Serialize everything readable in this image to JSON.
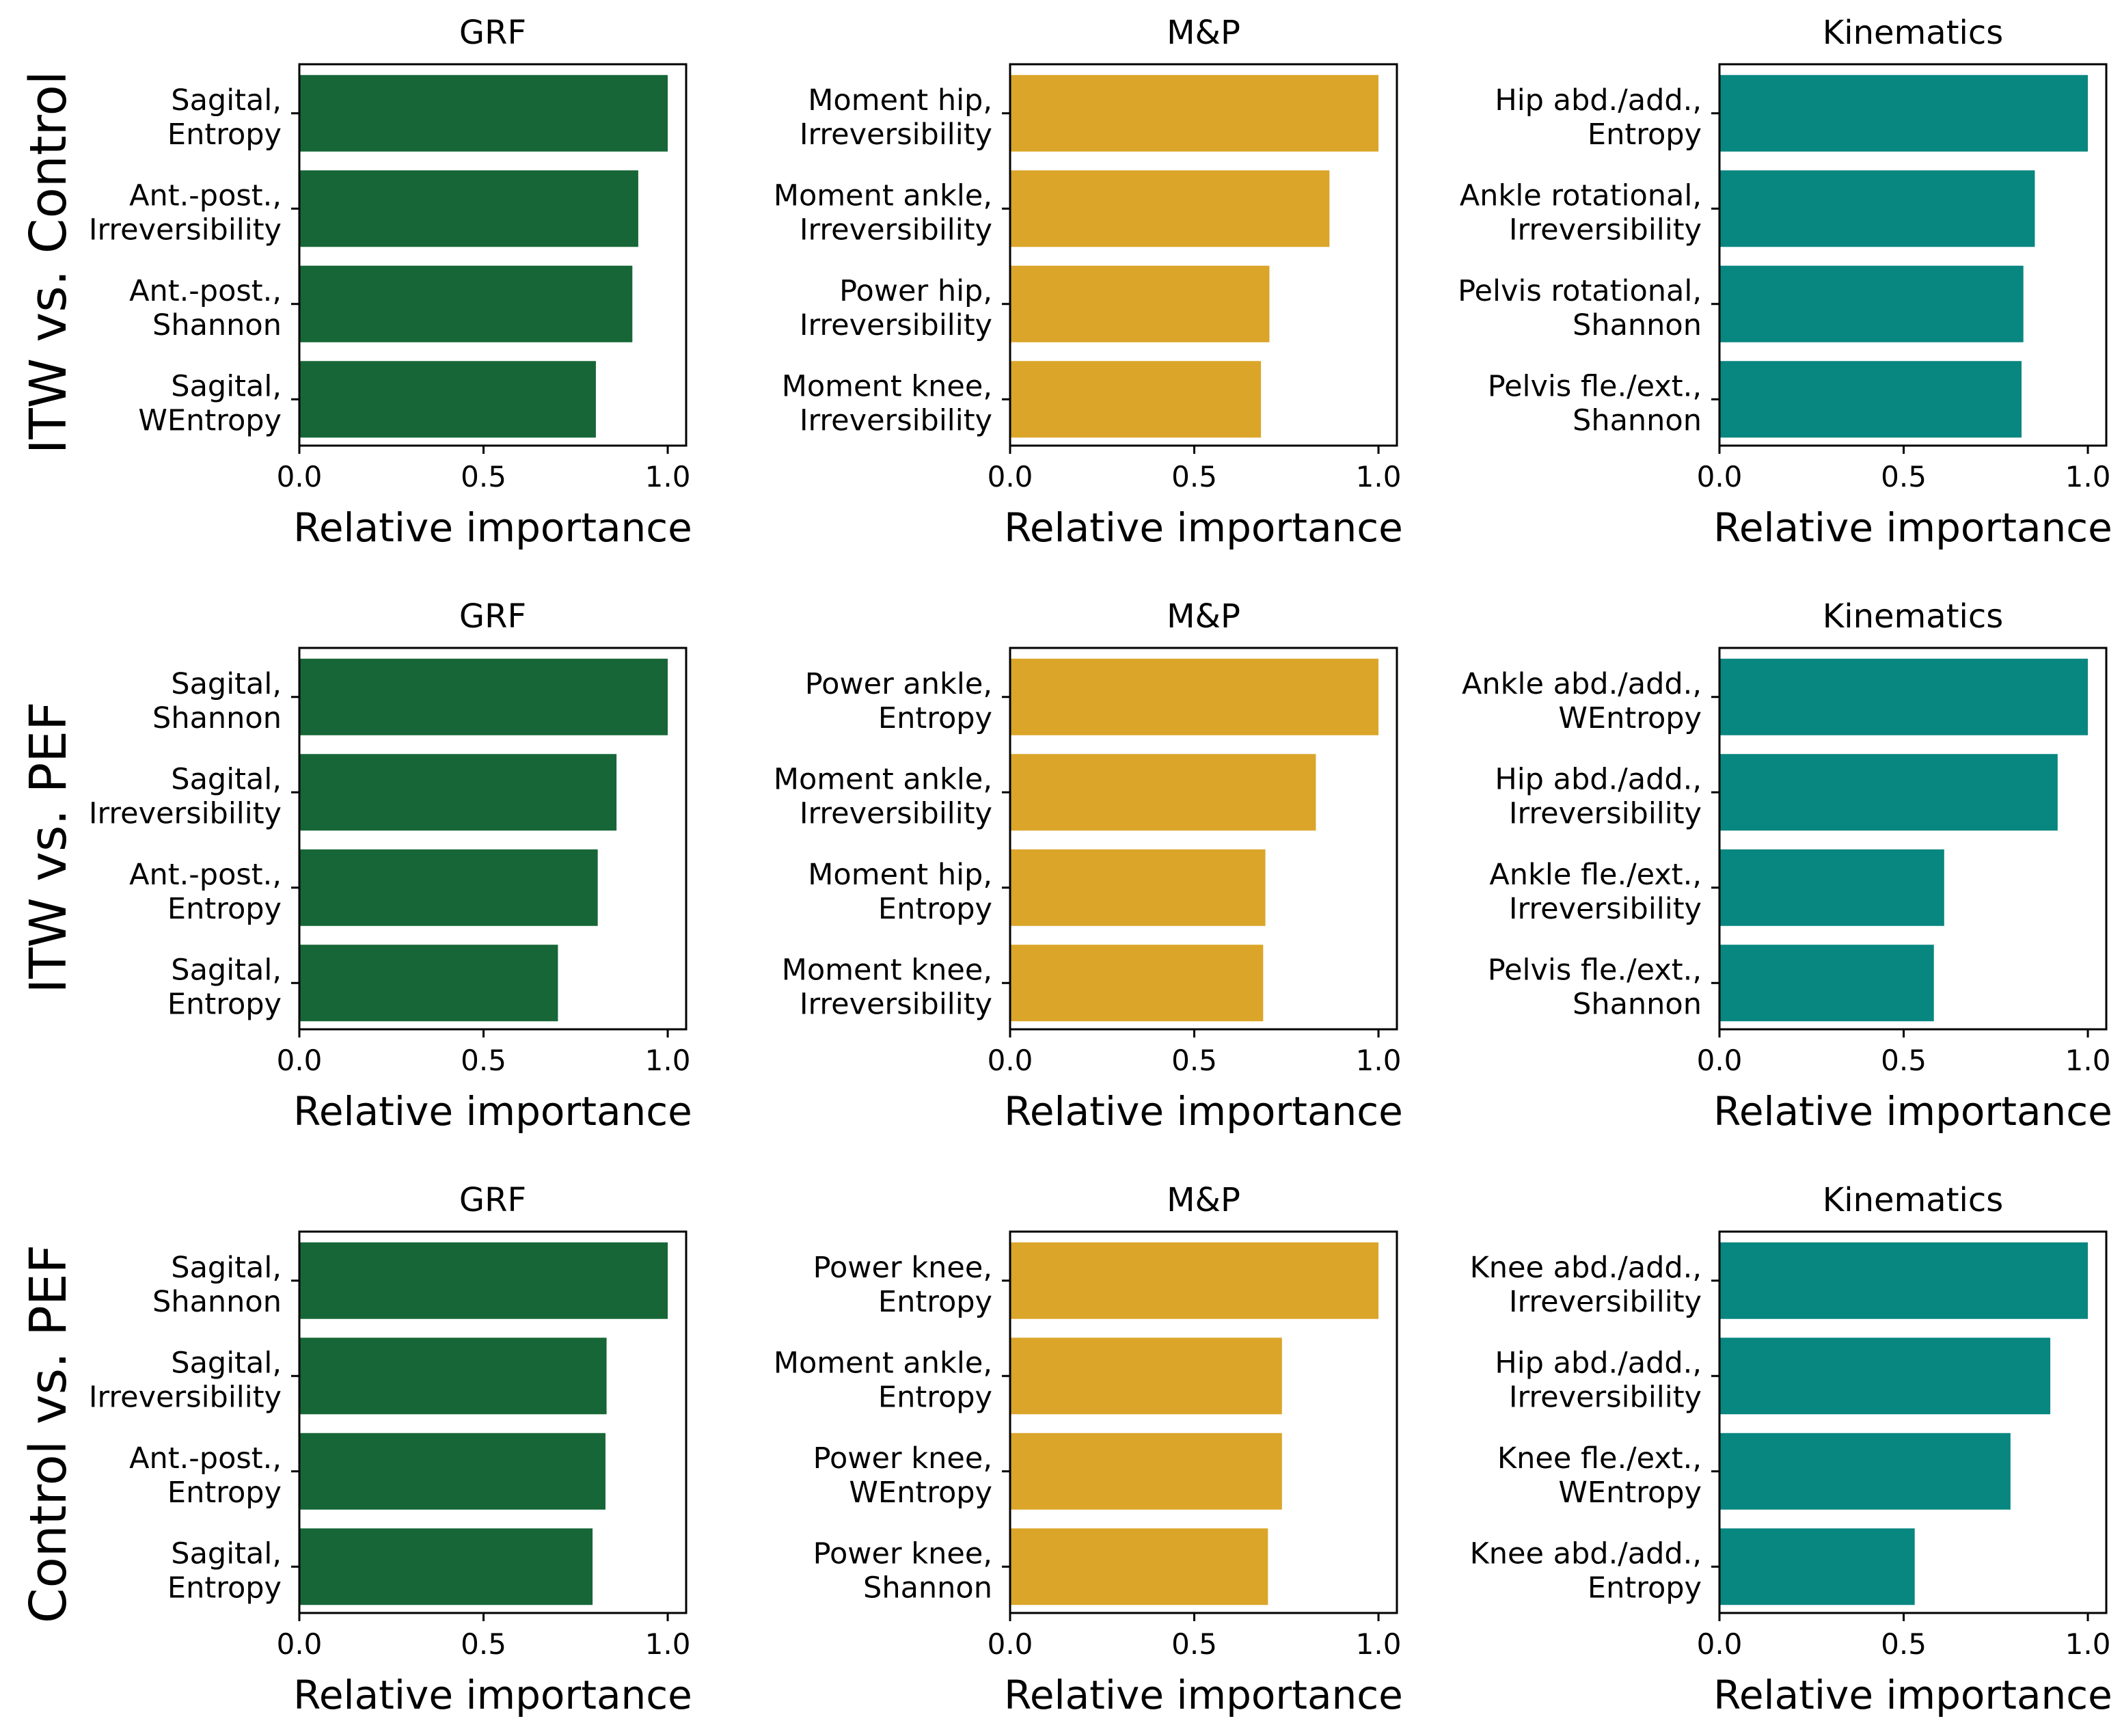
{
  "figure": {
    "xlabel_common": "Relative importance"
  },
  "rows": [
    {
      "label": "ITW vs. Control"
    },
    {
      "label": "ITW vs. PEF"
    },
    {
      "label": "Control vs. PEF"
    }
  ],
  "colors": {
    "GRF": "#176637",
    "M&P": "#daa529",
    "Kinematics": "#088680"
  },
  "chart_data": [
    {
      "type": "bar",
      "orientation": "horizontal",
      "row": "ITW vs. Control",
      "title": "GRF",
      "color_key": "GRF",
      "categories": [
        [
          "Sagital,",
          "Entropy"
        ],
        [
          "Ant.-post.,",
          "Irreversibility"
        ],
        [
          "Ant.-post.,",
          "Shannon"
        ],
        [
          "Sagital,",
          "WEntropy"
        ]
      ],
      "values": [
        1.0,
        0.92,
        0.904,
        0.805
      ],
      "xlabel": "Relative importance",
      "xlim": [
        0,
        1.05
      ],
      "xticks": [
        0.0,
        0.5,
        1.0
      ],
      "xtick_labels": [
        "0.0",
        "0.5",
        "1.0"
      ]
    },
    {
      "type": "bar",
      "orientation": "horizontal",
      "row": "ITW vs. Control",
      "title": "M&P",
      "color_key": "M&P",
      "categories": [
        [
          "Moment hip,",
          "Irreversibility"
        ],
        [
          "Moment ankle,",
          "Irreversibility"
        ],
        [
          "Power hip,",
          "Irreversibility"
        ],
        [
          "Moment knee,",
          "Irreversibility"
        ]
      ],
      "values": [
        1.0,
        0.867,
        0.704,
        0.681
      ],
      "xlabel": "Relative importance",
      "xlim": [
        0,
        1.05
      ],
      "xticks": [
        0.0,
        0.5,
        1.0
      ],
      "xtick_labels": [
        "0.0",
        "0.5",
        "1.0"
      ]
    },
    {
      "type": "bar",
      "orientation": "horizontal",
      "row": "ITW vs. Control",
      "title": "Kinematics",
      "color_key": "Kinematics",
      "categories": [
        [
          "Hip abd./add.,",
          "Entropy"
        ],
        [
          "Ankle rotational,",
          "Irreversibility"
        ],
        [
          "Pelvis rotational,",
          "Shannon"
        ],
        [
          "Pelvis fle./ext.,",
          "Shannon"
        ]
      ],
      "values": [
        1.0,
        0.856,
        0.825,
        0.82
      ],
      "xlabel": "Relative importance",
      "xlim": [
        0,
        1.05
      ],
      "xticks": [
        0.0,
        0.5,
        1.0
      ],
      "xtick_labels": [
        "0.0",
        "0.5",
        "1.0"
      ]
    },
    {
      "type": "bar",
      "orientation": "horizontal",
      "row": "ITW vs. PEF",
      "title": "GRF",
      "color_key": "GRF",
      "categories": [
        [
          "Sagital,",
          "Shannon"
        ],
        [
          "Sagital,",
          "Irreversibility"
        ],
        [
          "Ant.-post.,",
          "Entropy"
        ],
        [
          "Sagital,",
          "Entropy"
        ]
      ],
      "values": [
        1.0,
        0.861,
        0.81,
        0.702
      ],
      "xlabel": "Relative importance",
      "xlim": [
        0,
        1.05
      ],
      "xticks": [
        0.0,
        0.5,
        1.0
      ],
      "xtick_labels": [
        "0.0",
        "0.5",
        "1.0"
      ]
    },
    {
      "type": "bar",
      "orientation": "horizontal",
      "row": "ITW vs. PEF",
      "title": "M&P",
      "color_key": "M&P",
      "categories": [
        [
          "Power ankle,",
          "Entropy"
        ],
        [
          "Moment ankle,",
          "Irreversibility"
        ],
        [
          "Moment hip,",
          "Entropy"
        ],
        [
          "Moment knee,",
          "Irreversibility"
        ]
      ],
      "values": [
        1.0,
        0.83,
        0.693,
        0.687
      ],
      "xlabel": "Relative importance",
      "xlim": [
        0,
        1.05
      ],
      "xticks": [
        0.0,
        0.5,
        1.0
      ],
      "xtick_labels": [
        "0.0",
        "0.5",
        "1.0"
      ]
    },
    {
      "type": "bar",
      "orientation": "horizontal",
      "row": "ITW vs. PEF",
      "title": "Kinematics",
      "color_key": "Kinematics",
      "categories": [
        [
          "Ankle abd./add.,",
          "WEntropy"
        ],
        [
          "Hip abd./add.,",
          "Irreversibility"
        ],
        [
          "Ankle fle./ext.,",
          "Irreversibility"
        ],
        [
          "Pelvis fle./ext.,",
          "Shannon"
        ]
      ],
      "values": [
        1.0,
        0.918,
        0.61,
        0.582
      ],
      "xlabel": "Relative importance",
      "xlim": [
        0,
        1.05
      ],
      "xticks": [
        0.0,
        0.5,
        1.0
      ],
      "xtick_labels": [
        "0.0",
        "0.5",
        "1.0"
      ]
    },
    {
      "type": "bar",
      "orientation": "horizontal",
      "row": "Control vs. PEF",
      "title": "GRF",
      "color_key": "GRF",
      "categories": [
        [
          "Sagital,",
          "Shannon"
        ],
        [
          "Sagital,",
          "Irreversibility"
        ],
        [
          "Ant.-post.,",
          "Entropy"
        ],
        [
          "Sagital,",
          "Entropy"
        ]
      ],
      "values": [
        1.0,
        0.834,
        0.831,
        0.796
      ],
      "xlabel": "Relative importance",
      "xlim": [
        0,
        1.05
      ],
      "xticks": [
        0.0,
        0.5,
        1.0
      ],
      "xtick_labels": [
        "0.0",
        "0.5",
        "1.0"
      ]
    },
    {
      "type": "bar",
      "orientation": "horizontal",
      "row": "Control vs. PEF",
      "title": "M&P",
      "color_key": "M&P",
      "categories": [
        [
          "Power knee,",
          "Entropy"
        ],
        [
          "Moment ankle,",
          "Entropy"
        ],
        [
          "Power knee,",
          "WEntropy"
        ],
        [
          "Power knee,",
          "Shannon"
        ]
      ],
      "values": [
        1.0,
        0.738,
        0.738,
        0.7
      ],
      "xlabel": "Relative importance",
      "xlim": [
        0,
        1.05
      ],
      "xticks": [
        0.0,
        0.5,
        1.0
      ],
      "xtick_labels": [
        "0.0",
        "0.5",
        "1.0"
      ]
    },
    {
      "type": "bar",
      "orientation": "horizontal",
      "row": "Control vs. PEF",
      "title": "Kinematics",
      "color_key": "Kinematics",
      "categories": [
        [
          "Knee abd./add.,",
          "Irreversibility"
        ],
        [
          "Hip abd./add.,",
          "Irreversibility"
        ],
        [
          "Knee fle./ext.,",
          "WEntropy"
        ],
        [
          "Knee abd./add.,",
          "Entropy"
        ]
      ],
      "values": [
        1.0,
        0.898,
        0.79,
        0.53
      ],
      "xlabel": "Relative importance",
      "xlim": [
        0,
        1.05
      ],
      "xticks": [
        0.0,
        0.5,
        1.0
      ],
      "xtick_labels": [
        "0.0",
        "0.5",
        "1.0"
      ]
    }
  ]
}
